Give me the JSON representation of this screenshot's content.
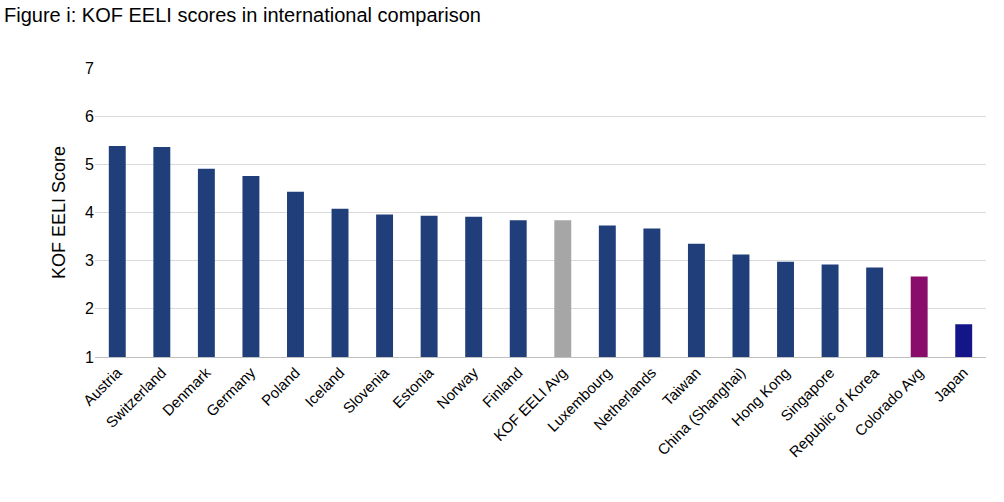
{
  "chart_data": {
    "type": "bar",
    "title": "Figure i: KOF EELI scores in international comparison",
    "y_label": "KOF EELI Score",
    "categories": [
      "Austria",
      "Switzerland",
      "Denmark",
      "Germany",
      "Poland",
      "Iceland",
      "Slovenia",
      "Estonia",
      "Norway",
      "Finland",
      "KOF EELI Avg",
      "Luxembourg",
      "Netherlands",
      "Taiwan",
      "China (Shanghai)",
      "Hong Kong",
      "Singapore",
      "Republic of Korea",
      "Colorado Avg",
      "Japan"
    ],
    "values": [
      5.38,
      5.36,
      4.91,
      4.76,
      4.43,
      4.08,
      3.96,
      3.93,
      3.91,
      3.84,
      3.84,
      3.73,
      3.67,
      3.35,
      3.13,
      2.98,
      2.92,
      2.86,
      2.67,
      1.68
    ],
    "colors": [
      "#203f7a",
      "#203f7a",
      "#203f7a",
      "#203f7a",
      "#203f7a",
      "#203f7a",
      "#203f7a",
      "#203f7a",
      "#203f7a",
      "#203f7a",
      "#a6a6a6",
      "#203f7a",
      "#203f7a",
      "#203f7a",
      "#203f7a",
      "#203f7a",
      "#203f7a",
      "#203f7a",
      "#8b0d6b",
      "#15158a"
    ],
    "ylim": [
      1,
      7
    ],
    "yticks": [
      1,
      2,
      3,
      4,
      5,
      6,
      7
    ],
    "grid": true
  }
}
